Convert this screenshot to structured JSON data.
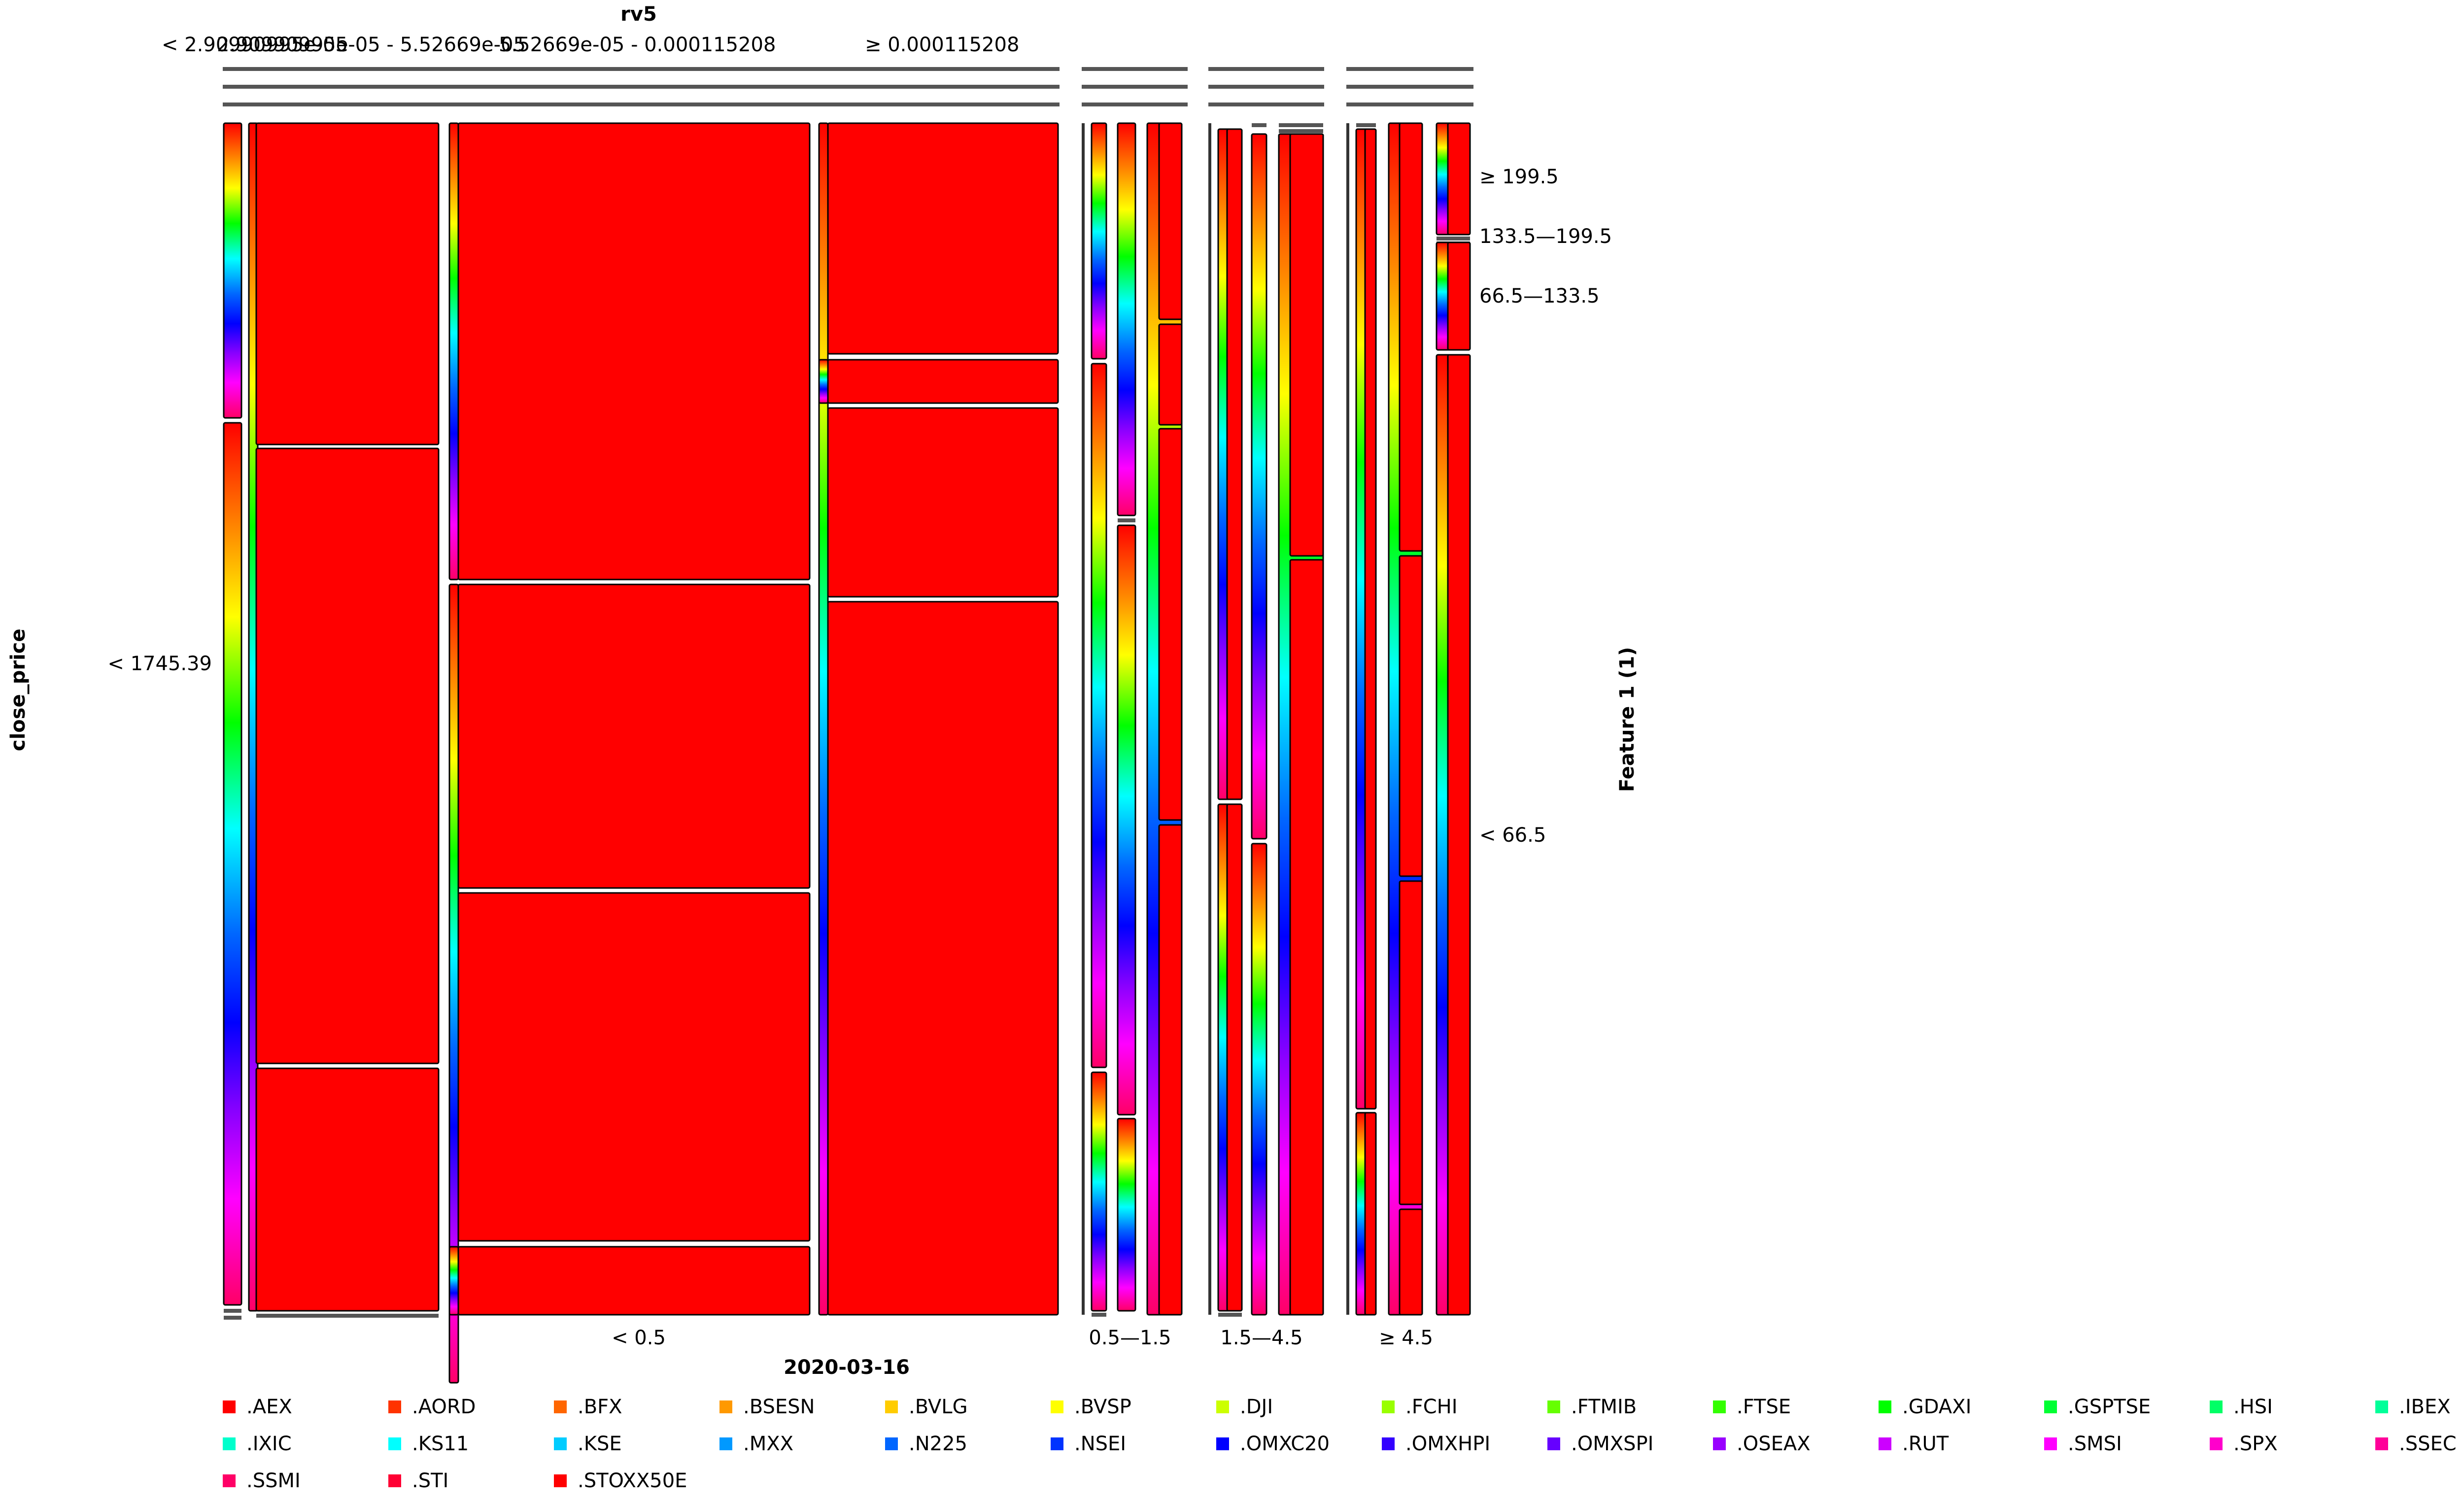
{
  "chart_data": {
    "type": "mosaic",
    "title": "rv5",
    "left_axis_title": "close_price",
    "bottom_axis_title": "2020-03-16",
    "right_axis_title": "Feature 1 (1)",
    "top_categories": [
      "< 2.90990995e-05",
      "2.90990995e-05 - 5.52669e-05",
      "5.52669e-05 - 0.000115208",
      "≥ 0.000115208"
    ],
    "left_categories": [
      "< 1745.39"
    ],
    "bottom_categories": [
      "< 0.5",
      "0.5—1.5",
      "1.5—4.5",
      "≥ 4.5"
    ],
    "right_categories": [
      "≥ 199.5",
      "133.5—199.5",
      "66.5—133.5",
      "< 66.5"
    ],
    "legend": [
      ".AEX",
      ".AORD",
      ".BFX",
      ".BSESN",
      ".BVLG",
      ".BVSP",
      ".DJI",
      ".FCHI",
      ".FTMIB",
      ".FTSE",
      ".GDAXI",
      ".GSPTSE",
      ".HSI",
      ".IBEX",
      ".IXIC",
      ".KS11",
      ".KSE",
      ".MXX",
      ".N225",
      ".NSEI",
      ".OMXC20",
      ".OMXHPI",
      ".OMXSPI",
      ".OSEAX",
      ".RUT",
      ".SMSI",
      ".SPX",
      ".SSEC",
      ".SSMI",
      ".STI",
      ".STOXX50E"
    ],
    "legend_colors": [
      "#ff0000",
      "#ff3300",
      "#ff6600",
      "#ff9900",
      "#ffcc00",
      "#ffff00",
      "#ccff00",
      "#99ff00",
      "#66ff00",
      "#33ff00",
      "#00ff00",
      "#00ff33",
      "#00ff66",
      "#00ff99",
      "#00ffcc",
      "#00ffff",
      "#00ccff",
      "#0099ff",
      "#0066ff",
      "#0033ff",
      "#0000ff",
      "#3300ff",
      "#6600ff",
      "#9900ff",
      "#cc00ff",
      "#ff00ff",
      "#ff00cc",
      "#ff0099",
      "#ff0066",
      "#ff0033",
      "#ff0000"
    ],
    "dominant_fill": "#ff0000",
    "tile_outline": "#000000",
    "empty_cell_marker": "#555555"
  }
}
